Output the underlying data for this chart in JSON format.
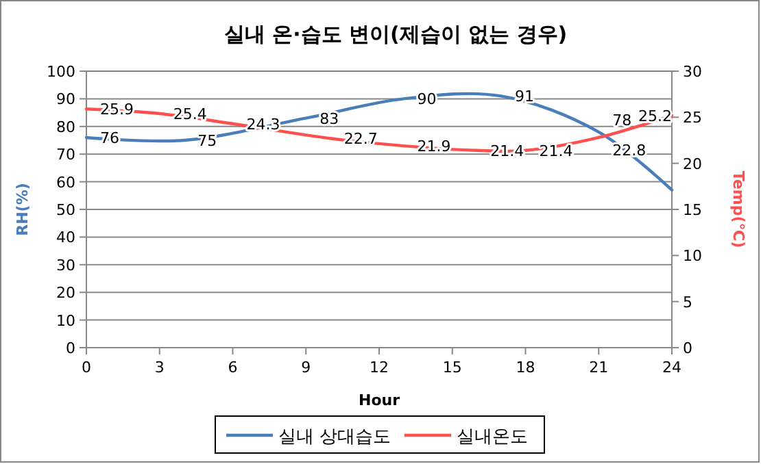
{
  "chart_data": {
    "type": "line",
    "title": "실내 온·습도 변이(제습이 없는 경우)",
    "xlabel": "Hour",
    "ylabel": "RH(%)",
    "y2label": "Temp(℃)",
    "xlim": [
      0,
      24
    ],
    "xticks": [
      0,
      3,
      6,
      9,
      12,
      15,
      18,
      21,
      24
    ],
    "ylim": [
      0,
      100
    ],
    "yticks": [
      0,
      10,
      20,
      30,
      40,
      50,
      60,
      70,
      80,
      90,
      100
    ],
    "y2lim": [
      0,
      30
    ],
    "y2ticks": [
      0,
      5,
      10,
      15,
      20,
      25,
      30
    ],
    "grid": "y",
    "legend": "bottom",
    "marker": "none",
    "line_style": "solid",
    "series": [
      {
        "name": "실내 상대습도",
        "color": "#4a7ebb",
        "x": [
          0,
          4,
          9,
          13,
          17,
          21,
          24
        ],
        "values": [
          76,
          75,
          83,
          90,
          91,
          78,
          57
        ],
        "value_labels": [
          "76",
          "75",
          "83",
          "90",
          "91",
          "78",
          null
        ]
      },
      {
        "name": "실내온도",
        "color": "#ff5050",
        "axis": "y2",
        "x": [
          0,
          3,
          6,
          10,
          13,
          16,
          18,
          21,
          24
        ],
        "values": [
          25.9,
          25.4,
          24.3,
          22.7,
          21.9,
          21.4,
          21.4,
          22.8,
          25.2
        ],
        "value_labels": [
          "25.9",
          "25.4",
          "24.3",
          "22.7",
          "21.9",
          "21.4",
          "21.4",
          "22.8",
          "25.2"
        ]
      }
    ]
  }
}
